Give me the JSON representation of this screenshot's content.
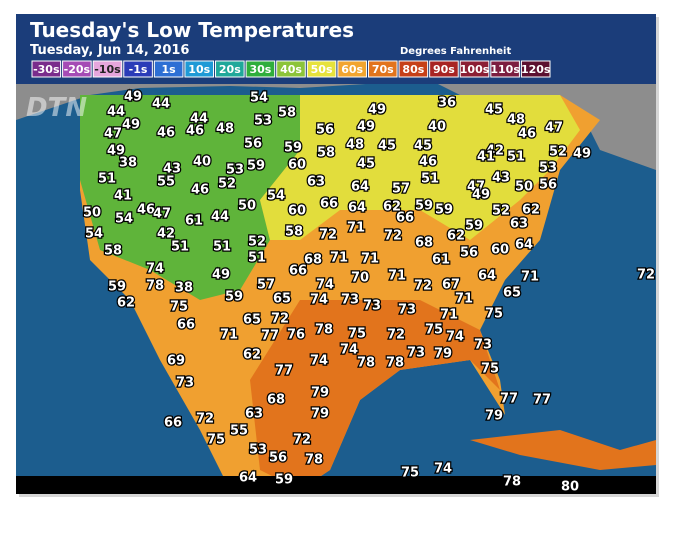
{
  "header": {
    "title": "Tuesday's Low Temperatures",
    "subtitle": "Tuesday, Jun 14, 2016",
    "units": "Degrees Fahrenheit",
    "logo": "DTN"
  },
  "legend": [
    {
      "label": "-30s",
      "color": "#7a2c8c"
    },
    {
      "label": "-20s",
      "color": "#a54bb5"
    },
    {
      "label": "-10s",
      "color": "#e6a6dc"
    },
    {
      "label": "-1s",
      "color": "#2a3cb8"
    },
    {
      "label": "1s",
      "color": "#2d6fd4"
    },
    {
      "label": "10s",
      "color": "#1f9ad6"
    },
    {
      "label": "20s",
      "color": "#1fa89a"
    },
    {
      "label": "30s",
      "color": "#2fae3c"
    },
    {
      "label": "40s",
      "color": "#8cc43a"
    },
    {
      "label": "50s",
      "color": "#e6e23c"
    },
    {
      "label": "60s",
      "color": "#f2a530"
    },
    {
      "label": "70s",
      "color": "#e2741c"
    },
    {
      "label": "80s",
      "color": "#c64018"
    },
    {
      "label": "90s",
      "color": "#a82424"
    },
    {
      "label": "100s",
      "color": "#8c1e34"
    },
    {
      "label": "110s",
      "color": "#7c1e40"
    },
    {
      "label": "120s",
      "color": "#5c1030"
    }
  ],
  "labels": [
    49,
    44,
    54,
    58,
    49,
    36,
    45,
    48,
    44,
    44,
    48,
    53,
    56,
    49,
    40,
    46,
    47,
    47,
    49,
    46,
    46,
    56,
    59,
    48,
    45,
    45,
    42,
    41,
    51,
    52,
    49,
    49,
    38,
    43,
    40,
    53,
    59,
    60,
    58,
    45,
    46,
    53,
    51,
    55,
    52,
    63,
    64,
    57,
    51,
    47,
    43,
    50,
    56,
    41,
    46,
    54,
    49,
    50,
    46,
    47,
    50,
    60,
    66,
    64,
    62,
    59,
    59,
    52,
    62,
    54,
    61,
    44,
    66,
    63,
    54,
    42,
    51,
    51,
    52,
    58,
    72,
    71,
    72,
    68,
    62,
    59,
    58,
    60,
    64,
    56,
    74,
    49,
    51,
    68,
    71,
    71,
    61,
    66,
    74,
    70,
    71,
    64,
    71,
    59,
    78,
    38,
    57,
    72,
    67,
    65,
    62,
    75,
    59,
    65,
    74,
    73,
    73,
    71,
    66,
    65,
    72,
    78,
    73,
    71,
    75,
    71,
    77,
    76,
    75,
    72,
    75,
    74,
    73,
    74,
    73,
    79,
    62,
    69,
    74,
    78,
    78,
    75,
    77,
    73,
    79,
    68,
    77,
    77,
    63,
    79,
    79,
    66,
    72,
    75,
    55,
    72,
    53,
    56,
    78,
    75,
    74,
    78,
    64,
    59,
    80,
    72
  ]
}
